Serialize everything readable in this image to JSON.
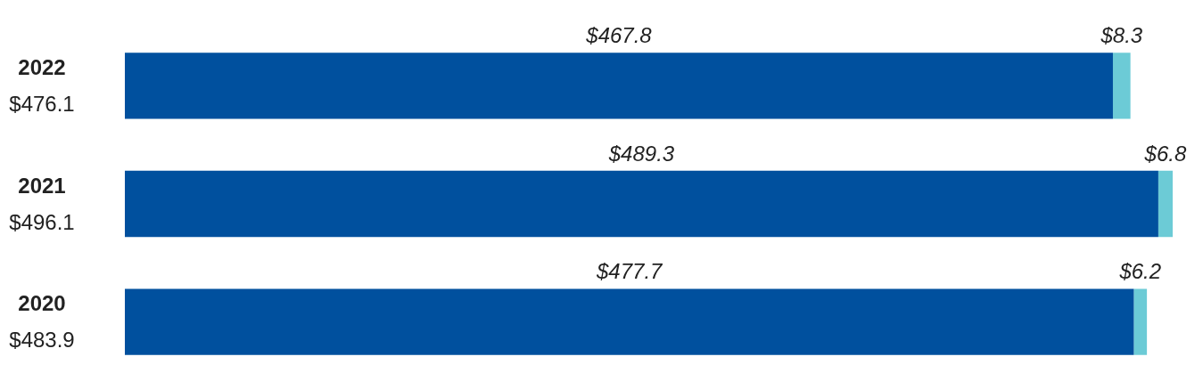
{
  "chart_data": {
    "type": "bar",
    "orientation": "horizontal",
    "stacked": true,
    "categories": [
      "2022",
      "2021",
      "2020"
    ],
    "series": [
      {
        "color": "#00509e",
        "values": [
          467.8,
          489.3,
          477.7
        ],
        "value_labels": [
          "$467.8",
          "$489.3",
          "$477.7"
        ]
      },
      {
        "color": "#6ccbd6",
        "values": [
          8.3,
          6.8,
          6.2
        ],
        "value_labels": [
          "$8.3",
          "$6.8",
          "$6.2"
        ]
      }
    ],
    "totals": [
      "$476.1",
      "$496.1",
      "$483.9"
    ],
    "legend": false
  }
}
